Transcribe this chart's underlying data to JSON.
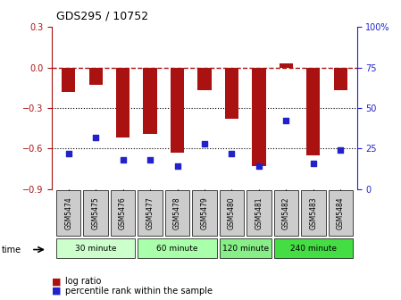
{
  "title": "GDS295 / 10752",
  "samples": [
    "GSM5474",
    "GSM5475",
    "GSM5476",
    "GSM5477",
    "GSM5478",
    "GSM5479",
    "GSM5480",
    "GSM5481",
    "GSM5482",
    "GSM5483",
    "GSM5484"
  ],
  "log_ratio": [
    -0.18,
    -0.13,
    -0.52,
    -0.49,
    -0.63,
    -0.17,
    -0.38,
    -0.73,
    0.03,
    -0.65,
    -0.17
  ],
  "percentile": [
    22,
    32,
    18,
    18,
    14,
    28,
    22,
    14,
    42,
    16,
    24
  ],
  "ylim_left": [
    -0.9,
    0.3
  ],
  "ylim_right": [
    0,
    100
  ],
  "yticks_left": [
    -0.9,
    -0.6,
    -0.3,
    0,
    0.3
  ],
  "yticks_right": [
    0,
    25,
    50,
    75,
    100
  ],
  "bar_color": "#aa1111",
  "dot_color": "#2222cc",
  "hline_y": 0,
  "dotted_lines": [
    -0.3,
    -0.6
  ],
  "groups": [
    {
      "label": "30 minute",
      "start": 0,
      "end": 2,
      "color": "#ccffcc"
    },
    {
      "label": "60 minute",
      "start": 3,
      "end": 5,
      "color": "#aaffaa"
    },
    {
      "label": "120 minute",
      "start": 6,
      "end": 7,
      "color": "#88ee88"
    },
    {
      "label": "240 minute",
      "start": 8,
      "end": 10,
      "color": "#44dd44"
    }
  ],
  "bar_width": 0.5,
  "legend_log_ratio_label": "log ratio",
  "legend_percentile_label": "percentile rank within the sample",
  "time_label": "time",
  "background_color": "#ffffff",
  "grid_area_color": "#ffffff",
  "xlabel_area_color": "#cccccc"
}
